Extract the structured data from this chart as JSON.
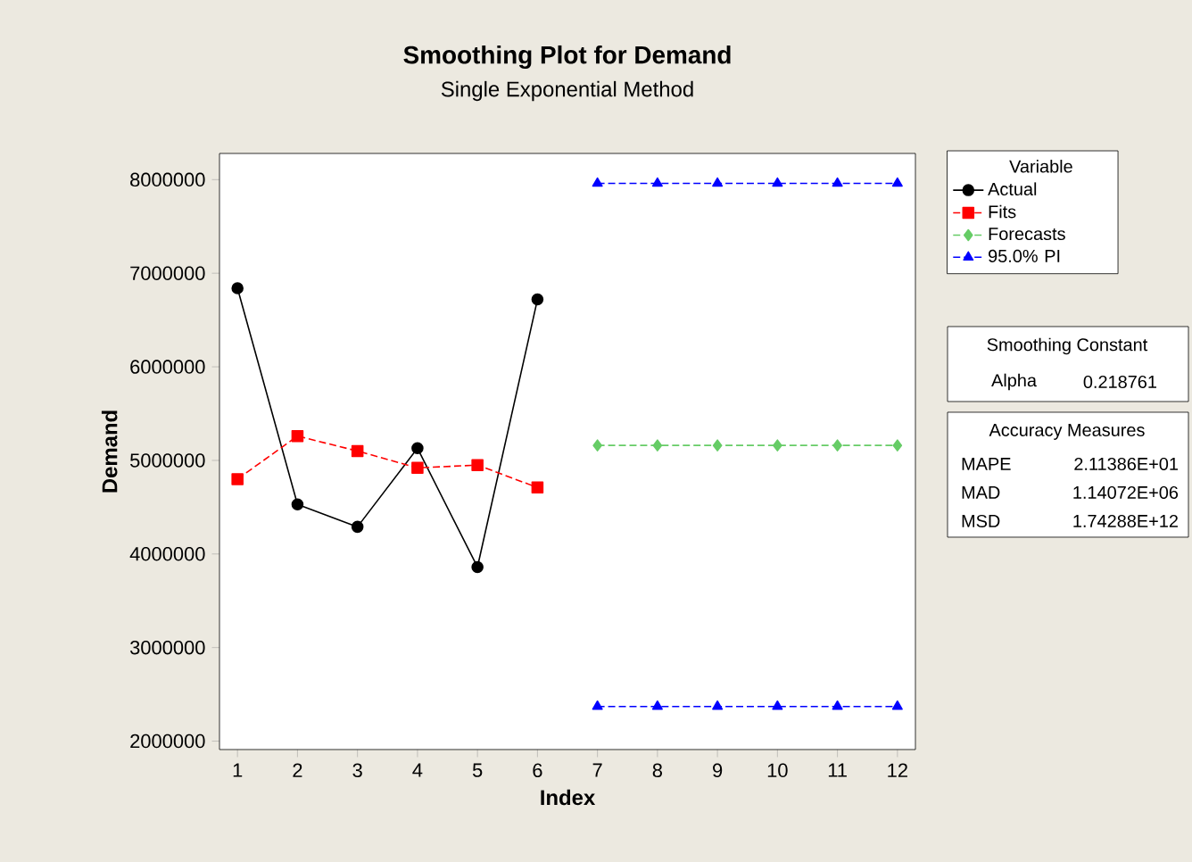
{
  "chart_data": {
    "type": "line",
    "title": "Smoothing Plot for Demand",
    "subtitle": "Single Exponential Method",
    "xlabel": "Index",
    "ylabel": "Demand",
    "legend_title": "Variable",
    "series": [
      {
        "name": "Actual",
        "color": "#000000",
        "marker": "circle",
        "line_style": "solid",
        "x": [
          1,
          2,
          3,
          4,
          5,
          6
        ],
        "values": [
          6840000,
          4530000,
          4290000,
          5130000,
          3860000,
          6720000
        ]
      },
      {
        "name": "Fits",
        "color": "#ff0000",
        "marker": "square",
        "line_style": "dashed",
        "x": [
          1,
          2,
          3,
          4,
          5,
          6
        ],
        "values": [
          4800000,
          5260000,
          5100000,
          4920000,
          4950000,
          4710000
        ]
      },
      {
        "name": "Forecasts",
        "color": "#66cc66",
        "marker": "diamond",
        "line_style": "dashed",
        "x": [
          7,
          8,
          9,
          10,
          11,
          12
        ],
        "values": [
          5160000,
          5160000,
          5160000,
          5160000,
          5160000,
          5160000
        ]
      },
      {
        "name": "95.0% PI",
        "color": "#0000ff",
        "marker": "triangle",
        "line_style": "dashed",
        "x": [
          7,
          8,
          9,
          10,
          11,
          12
        ],
        "values": [
          7960000,
          7960000,
          7960000,
          7960000,
          7960000,
          7960000
        ]
      },
      {
        "color": "#0000ff",
        "marker": "triangle",
        "line_style": "dashed",
        "x": [
          7,
          8,
          9,
          10,
          11,
          12
        ],
        "values": [
          2370000,
          2370000,
          2370000,
          2370000,
          2370000,
          2370000
        ]
      }
    ],
    "xlim": [
      0.7,
      12.3
    ],
    "ylim": [
      1910000,
      8280000
    ],
    "xticks": [
      1,
      2,
      3,
      4,
      5,
      6,
      7,
      8,
      9,
      10,
      11,
      12
    ],
    "yticks": [
      2000000,
      3000000,
      4000000,
      5000000,
      6000000,
      7000000,
      8000000
    ],
    "grid": false,
    "legend": "right",
    "annotations": [
      "Smoothing Constant",
      "Alpha",
      "0.218761",
      "Accuracy Measures",
      "MAPE",
      "2.11386E+01",
      "MAD",
      "1.14072E+06",
      "MSD",
      "1.74288E+12"
    ]
  }
}
